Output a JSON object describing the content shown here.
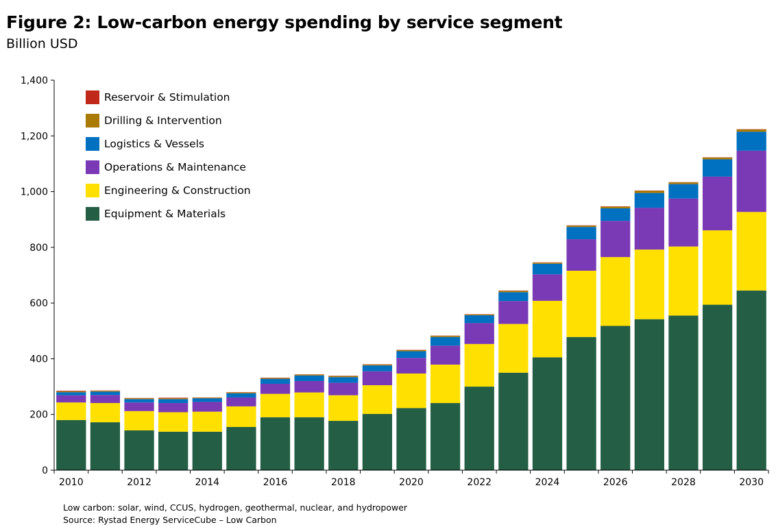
{
  "header": {
    "title": "Figure 2: Low-carbon energy spending by service segment",
    "subtitle": "Billion USD"
  },
  "footnotes": {
    "note": "Low carbon: solar, wind, CCUS, hydrogen, geothermal, nuclear, and hydropower",
    "source": "Source: Rystad Energy ServiceCube – Low Carbon"
  },
  "chart_data": {
    "type": "bar",
    "stacked": true,
    "title": "Figure 2: Low-carbon energy spending by service segment",
    "ylabel": "Billion USD",
    "xlabel": "",
    "ylim": [
      0,
      1400
    ],
    "yticks": [
      0,
      200,
      400,
      600,
      800,
      1000,
      1200,
      1400
    ],
    "ytick_labels": [
      "0",
      "200",
      "400",
      "600",
      "800",
      "1,000",
      "1,200",
      "1,400"
    ],
    "categories": [
      "2010",
      "2011",
      "2012",
      "2013",
      "2014",
      "2015",
      "2016",
      "2017",
      "2018",
      "2019",
      "2020",
      "2021",
      "2022",
      "2023",
      "2024",
      "2025",
      "2026",
      "2027",
      "2028",
      "2029",
      "2030"
    ],
    "xtick_labels": [
      "2010",
      "2012",
      "2014",
      "2016",
      "2018",
      "2020",
      "2022",
      "2024",
      "2026",
      "2028",
      "2030"
    ],
    "grid": false,
    "legend_position": "top-left",
    "series": [
      {
        "name": "Equipment & Materials",
        "color": "#235E45",
        "values": [
          180,
          172,
          143,
          138,
          138,
          155,
          190,
          190,
          177,
          202,
          223,
          241,
          300,
          350,
          405,
          478,
          518,
          542,
          555,
          594,
          645
        ]
      },
      {
        "name": "Engineering & Construction",
        "color": "#FFE000",
        "values": [
          63,
          69,
          69,
          70,
          72,
          74,
          84,
          89,
          92,
          103,
          124,
          138,
          153,
          175,
          203,
          238,
          247,
          250,
          248,
          267,
          282
        ]
      },
      {
        "name": "Operations & Maintenance",
        "color": "#7B3AB5",
        "values": [
          26,
          29,
          31,
          33,
          35,
          32,
          36,
          41,
          45,
          50,
          56,
          68,
          75,
          82,
          95,
          113,
          130,
          150,
          172,
          193,
          220
        ]
      },
      {
        "name": "Logistics & Vessels",
        "color": "#0070C0",
        "values": [
          11,
          12,
          12,
          14,
          13,
          15,
          18,
          20,
          20,
          21,
          24,
          31,
          28,
          32,
          38,
          44,
          45,
          53,
          52,
          62,
          68
        ]
      },
      {
        "name": "Drilling & Intervention",
        "color": "#A97A06",
        "values": [
          3,
          3,
          3,
          3,
          2,
          3,
          3,
          3,
          4,
          3,
          4,
          4,
          3,
          5,
          4,
          5,
          6,
          8,
          6,
          6,
          8
        ]
      },
      {
        "name": "Reservoir & Stimulation",
        "color": "#C0281A",
        "values": [
          2,
          1,
          1,
          2,
          1,
          1,
          1,
          1,
          1,
          1,
          1,
          1,
          1,
          1,
          1,
          1,
          1,
          1,
          1,
          1,
          1
        ]
      }
    ]
  }
}
